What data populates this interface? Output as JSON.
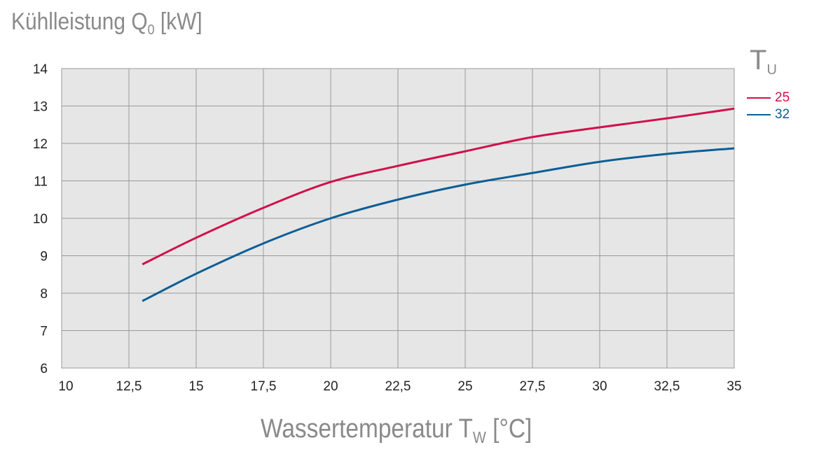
{
  "chart_data": {
    "type": "line",
    "title": "",
    "ylabel": {
      "text": "Kühlleistung Q",
      "sub": "0",
      "unit": "[kW]"
    },
    "xlabel": {
      "text": "Wassertemperatur T",
      "sub": "W",
      "unit": "[°C]"
    },
    "xlim": [
      10,
      35
    ],
    "ylim": [
      6,
      14
    ],
    "xticks": [
      "10",
      "12,5",
      "15",
      "17,5",
      "20",
      "22,5",
      "25",
      "27,5",
      "30",
      "32,5",
      "35"
    ],
    "yticks": [
      "6",
      "7",
      "8",
      "9",
      "10",
      "11",
      "12",
      "13",
      "14"
    ],
    "grid": true,
    "legend": {
      "title": "T",
      "title_sub": "U",
      "placement": "right"
    },
    "x": [
      13,
      15,
      17.5,
      20,
      22.5,
      25,
      27.5,
      30,
      32.5,
      35
    ],
    "series": [
      {
        "name": "25",
        "color": "#d0104c",
        "values": [
          8.77,
          9.48,
          10.28,
          10.97,
          11.4,
          11.79,
          12.17,
          12.43,
          12.67,
          12.93
        ]
      },
      {
        "name": "32",
        "color": "#0a5e96",
        "values": [
          7.79,
          8.52,
          9.33,
          10.0,
          10.5,
          10.9,
          11.21,
          11.51,
          11.72,
          11.87
        ]
      }
    ]
  }
}
